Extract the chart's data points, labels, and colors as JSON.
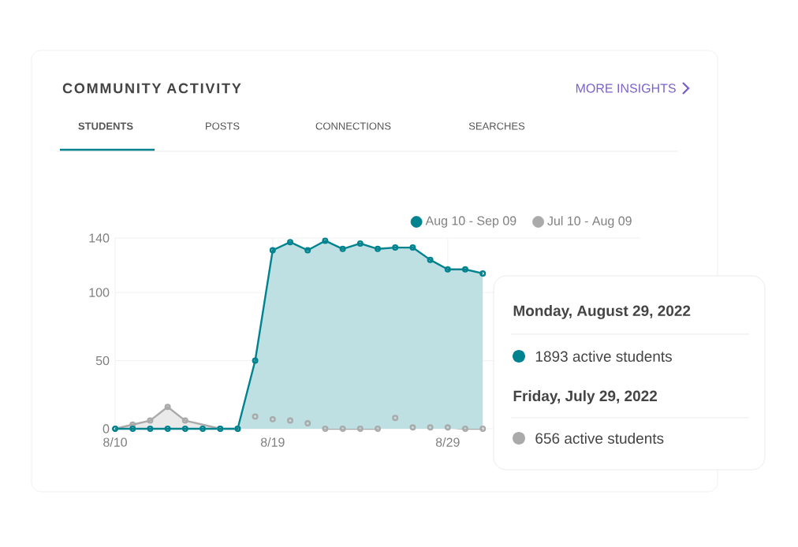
{
  "chart_data": {
    "type": "area",
    "title": "COMMUNITY ACTIVITY",
    "annotations": [
      "MORE INSIGHTS",
      "STUDENTS",
      "POSTS",
      "CONNECTIONS",
      "SEARCHES",
      "Monday, August 29, 2022",
      "1893 active students",
      "Friday, July 29, 2022",
      "656 active students"
    ],
    "categories": [
      "8/10",
      null,
      null,
      null,
      null,
      null,
      null,
      null,
      null,
      "8/19",
      null,
      null,
      null,
      null,
      null,
      null,
      null,
      null,
      null,
      "8/29",
      null,
      null,
      null,
      null,
      null,
      null,
      null,
      null,
      null,
      null,
      null
    ],
    "series": [
      {
        "name": "Aug 10 - Sep 09",
        "color": "#00838f",
        "values": [
          0,
          0,
          0,
          0,
          0,
          0,
          0,
          0,
          50,
          131,
          137,
          131,
          138,
          132,
          136,
          132,
          133,
          133,
          124,
          117,
          117,
          114,
          null,
          null,
          null,
          null,
          null,
          null,
          null,
          null,
          null
        ]
      },
      {
        "name": "Jul 10 - Aug 09",
        "color": "#aaaaaa",
        "values": [
          0,
          3,
          6,
          16,
          6,
          null,
          0,
          0,
          9,
          7,
          6,
          4,
          0,
          0,
          0,
          0,
          8,
          1,
          1,
          1,
          0,
          0,
          null,
          null,
          null,
          null,
          null,
          null,
          null,
          null,
          null
        ]
      }
    ],
    "ylim": [
      0,
      140
    ],
    "yticks": [
      0,
      50,
      100,
      140
    ],
    "grid": true,
    "legend": "top right",
    "marker": "circle"
  }
}
